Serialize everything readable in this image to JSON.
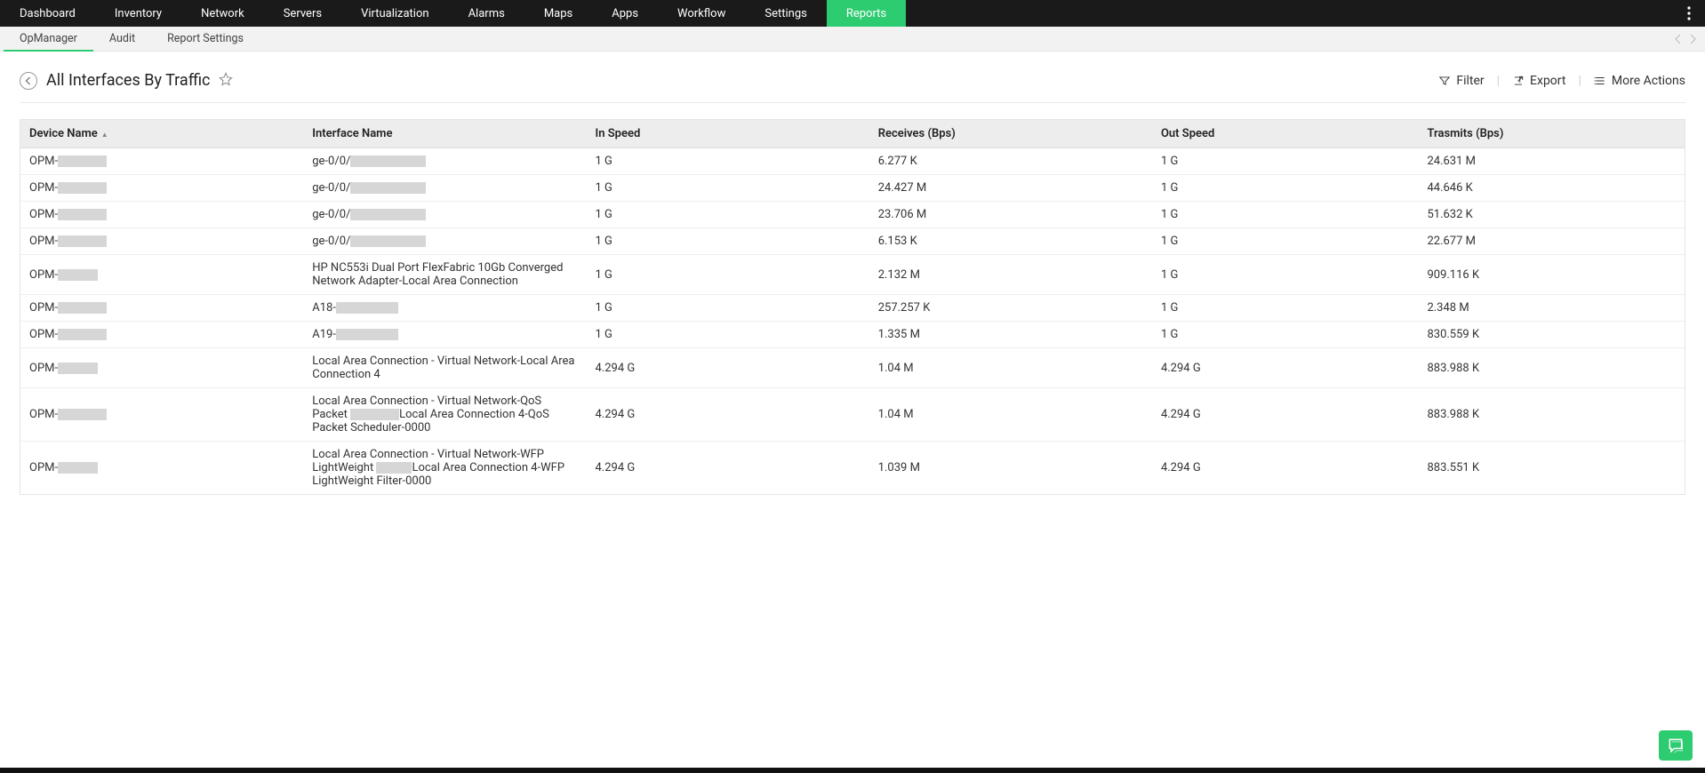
{
  "colors": {
    "accent": "#2ecc71",
    "topnav_bg": "#1a1a1a",
    "subnav_bg": "#f2f2f2",
    "table_header_bg": "#ededed",
    "blur_bg": "#d6d6d6",
    "border": "#e5e5e5"
  },
  "topnav": {
    "items": [
      {
        "label": "Dashboard"
      },
      {
        "label": "Inventory"
      },
      {
        "label": "Network"
      },
      {
        "label": "Servers"
      },
      {
        "label": "Virtualization"
      },
      {
        "label": "Alarms"
      },
      {
        "label": "Maps"
      },
      {
        "label": "Apps"
      },
      {
        "label": "Workflow"
      },
      {
        "label": "Settings"
      },
      {
        "label": "Reports",
        "active": true
      }
    ]
  },
  "subnav": {
    "items": [
      {
        "label": "OpManager",
        "active": true
      },
      {
        "label": "Audit"
      },
      {
        "label": "Report Settings"
      }
    ]
  },
  "header": {
    "title": "All Interfaces By Traffic",
    "actions": {
      "filter": "Filter",
      "export": "Export",
      "more": "More Actions"
    }
  },
  "table": {
    "column_widths_pct": [
      17,
      17,
      17,
      17,
      16,
      16
    ],
    "columns": [
      {
        "label": "Device Name",
        "sorted": true
      },
      {
        "label": "Interface Name"
      },
      {
        "label": "In Speed"
      },
      {
        "label": "Receives (Bps)"
      },
      {
        "label": "Out Speed"
      },
      {
        "label": "Trasmits (Bps)"
      }
    ],
    "rows": [
      {
        "device_prefix": "OPM-",
        "device_blur_w": 55,
        "iface_prefix": "ge-0/0/",
        "iface_blur_w": 85,
        "in_speed": "1 G",
        "receives": "6.277 K",
        "out_speed": "1 G",
        "transmits": "24.631 M"
      },
      {
        "device_prefix": "OPM-",
        "device_blur_w": 55,
        "iface_prefix": "ge-0/0/",
        "iface_blur_w": 85,
        "in_speed": "1 G",
        "receives": "24.427 M",
        "out_speed": "1 G",
        "transmits": "44.646 K"
      },
      {
        "device_prefix": "OPM-",
        "device_blur_w": 55,
        "iface_prefix": "ge-0/0/",
        "iface_blur_w": 85,
        "in_speed": "1 G",
        "receives": "23.706 M",
        "out_speed": "1 G",
        "transmits": "51.632 K"
      },
      {
        "device_prefix": "OPM-",
        "device_blur_w": 55,
        "iface_prefix": "ge-0/0/",
        "iface_blur_w": 85,
        "in_speed": "1 G",
        "receives": "6.153 K",
        "out_speed": "1 G",
        "transmits": "22.677 M"
      },
      {
        "device_prefix": "OPM-",
        "device_blur_w": 45,
        "iface_text": "HP NC553i Dual Port FlexFabric 10Gb Converged Network Adapter-Local Area Connection",
        "in_speed": "1 G",
        "receives": "2.132 M",
        "out_speed": "1 G",
        "transmits": "909.116 K"
      },
      {
        "device_prefix": "OPM-",
        "device_blur_w": 55,
        "iface_prefix": "A18-",
        "iface_blur_w": 70,
        "in_speed": "1 G",
        "receives": "257.257 K",
        "out_speed": "1 G",
        "transmits": "2.348 M"
      },
      {
        "device_prefix": "OPM-",
        "device_blur_w": 55,
        "iface_prefix": "A19-",
        "iface_blur_w": 70,
        "in_speed": "1 G",
        "receives": "1.335 M",
        "out_speed": "1 G",
        "transmits": "830.559 K"
      },
      {
        "device_prefix": "OPM-",
        "device_blur_w": 45,
        "iface_text": "Local Area Connection - Virtual Network-Local Area Connection 4",
        "in_speed": "4.294 G",
        "receives": "1.04 M",
        "out_speed": "4.294 G",
        "transmits": "883.988 K"
      },
      {
        "device_prefix": "OPM-",
        "device_blur_w": 55,
        "iface_segments": [
          {
            "text": "Local Area Connection - Virtual Network-QoS Packet "
          },
          {
            "blur_w": 55
          },
          {
            "text": "Local Area Connection 4-QoS Packet Scheduler-0000"
          }
        ],
        "in_speed": "4.294 G",
        "receives": "1.04 M",
        "out_speed": "4.294 G",
        "transmits": "883.988 K"
      },
      {
        "device_prefix": "OPM-",
        "device_blur_w": 45,
        "iface_segments": [
          {
            "text": "Local Area Connection - Virtual Network-WFP LightWeight "
          },
          {
            "blur_w": 40
          },
          {
            "text": "Local Area Connection 4-WFP LightWeight Filter-0000"
          }
        ],
        "in_speed": "4.294 G",
        "receives": "1.039 M",
        "out_speed": "4.294 G",
        "transmits": "883.551 K"
      }
    ]
  }
}
